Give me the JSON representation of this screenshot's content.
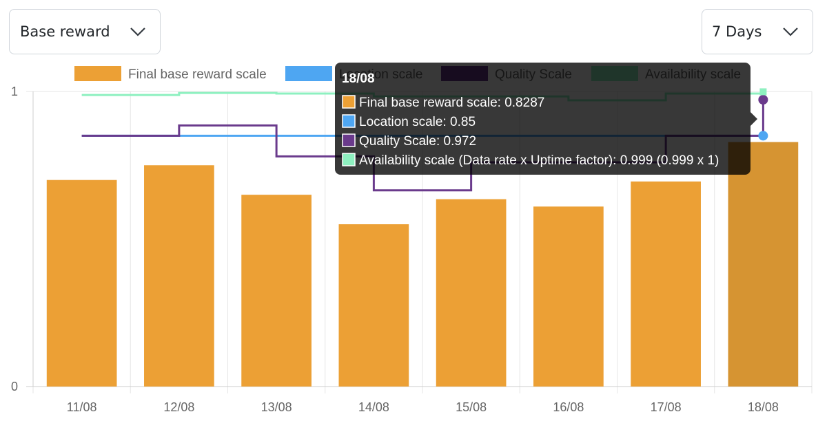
{
  "controls": {
    "metric_select": {
      "value": "Base reward"
    },
    "range_select": {
      "value": "7 Days"
    }
  },
  "chart_data": {
    "type": "bar",
    "categories": [
      "11/08",
      "12/08",
      "13/08",
      "14/08",
      "15/08",
      "16/08",
      "17/08",
      "18/08"
    ],
    "ylim": [
      0,
      1
    ],
    "y_ticks": [
      "0",
      "1"
    ],
    "grid": true,
    "legend_position": "top",
    "series": [
      {
        "name": "Final base reward scale",
        "kind": "bar",
        "color": "#eca035",
        "hover_color": "#d69432",
        "values": [
          0.7,
          0.75,
          0.65,
          0.55,
          0.635,
          0.61,
          0.695,
          0.8287
        ]
      },
      {
        "name": "Location scale",
        "kind": "step-line",
        "color": "#4ea6f2",
        "values": [
          0.85,
          0.85,
          0.85,
          0.85,
          0.85,
          0.85,
          0.85,
          0.85
        ]
      },
      {
        "name": "Quality Scale",
        "kind": "step-line",
        "color": "#6a3a8c",
        "values": [
          0.85,
          0.885,
          0.78,
          0.665,
          0.76,
          0.76,
          0.85,
          0.972
        ]
      },
      {
        "name": "Availability scale",
        "kind": "step-line",
        "color": "#8ef0c0",
        "values": [
          0.988,
          0.995,
          0.993,
          0.983,
          0.983,
          0.97,
          0.993,
          0.999
        ]
      }
    ],
    "tooltip": {
      "title": "18/08",
      "category_index": 7,
      "lines": [
        {
          "text": "Final base reward scale: 0.8287",
          "color": "#eca035"
        },
        {
          "text": "Location scale: 0.85",
          "color": "#4ea6f2"
        },
        {
          "text": "Quality Scale: 0.972",
          "color": "#6a3a8c"
        },
        {
          "text": "Availability scale (Data rate x Uptime factor): 0.999 (0.999 x 1)",
          "color": "#8ef0c0"
        }
      ]
    }
  }
}
